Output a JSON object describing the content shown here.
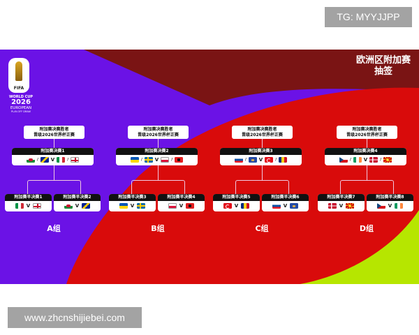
{
  "badge": "TG: MYYJJPP",
  "watermark": "www.zhcnshijiebei.com",
  "poster": {
    "title_line1": "欧洲区附加赛",
    "title_line2": "抽签",
    "logo": {
      "fifa": "FIFA",
      "line1": "WORLD CUP",
      "line2": "2026",
      "line3": "EUROPEAN",
      "line4": "PLAY-OFF DRAW"
    },
    "colors": {
      "purple": "#6b12e6",
      "red": "#d90b0b",
      "dark_red": "#7a1414",
      "lime": "#b6e600"
    },
    "groups": [
      {
        "label": "A组",
        "winner_line1": "附加赛决赛胜者",
        "winner_line2": "晋级2026世界杯正赛",
        "final": {
          "title": "附加赛决赛1",
          "teams": [
            "wales",
            "bosnia",
            "italy",
            "nireland"
          ]
        },
        "semis": [
          {
            "title": "附加赛半决赛1",
            "teams": [
              "italy",
              "nireland"
            ]
          },
          {
            "title": "附加赛半决赛2",
            "teams": [
              "wales",
              "bosnia"
            ]
          }
        ]
      },
      {
        "label": "B组",
        "winner_line1": "附加赛决赛胜者",
        "winner_line2": "晋级2026世界杯正赛",
        "final": {
          "title": "附加赛决赛2",
          "teams": [
            "ukraine",
            "sweden",
            "poland",
            "albania"
          ]
        },
        "semis": [
          {
            "title": "附加赛半决赛3",
            "teams": [
              "ukraine",
              "sweden"
            ]
          },
          {
            "title": "附加赛半决赛4",
            "teams": [
              "poland",
              "albania"
            ]
          }
        ]
      },
      {
        "label": "C组",
        "winner_line1": "附加赛决赛胜者",
        "winner_line2": "晋级2026世界杯正赛",
        "final": {
          "title": "附加赛决赛3",
          "teams": [
            "slovakia",
            "kosovo",
            "turkey",
            "romania"
          ]
        },
        "semis": [
          {
            "title": "附加赛半决赛5",
            "teams": [
              "turkey",
              "romania"
            ]
          },
          {
            "title": "附加赛半决赛6",
            "teams": [
              "slovakia",
              "kosovo"
            ]
          }
        ]
      },
      {
        "label": "D组",
        "winner_line1": "附加赛决赛胜者",
        "winner_line2": "晋级2026世界杯正赛",
        "final": {
          "title": "附加赛决赛4",
          "teams": [
            "czechia",
            "ireland",
            "denmark",
            "nmacedonia"
          ]
        },
        "semis": [
          {
            "title": "附加赛半决赛7",
            "teams": [
              "denmark",
              "nmacedonia"
            ]
          },
          {
            "title": "附加赛半决赛8",
            "teams": [
              "czechia",
              "ireland"
            ]
          }
        ]
      }
    ],
    "vs_symbol": "V",
    "or_symbol": "/"
  }
}
